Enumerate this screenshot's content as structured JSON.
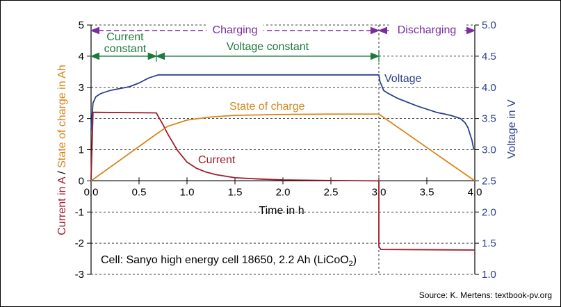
{
  "chart_data": {
    "type": "line",
    "xlabel": "Time in h",
    "ylabel_parts": [
      {
        "text": "Current in A",
        "color": "#a01c2b"
      },
      {
        "text": " / ",
        "color": "#000000"
      },
      {
        "text": "State of charge in Ah",
        "color": "#d6861a"
      }
    ],
    "y2label": "Voltage in V",
    "xlim": [
      0,
      4
    ],
    "ylim": [
      -3,
      5
    ],
    "y2lim": [
      1.0,
      5.0
    ],
    "x_ticks": [
      "0.0",
      "0.5",
      "1.0",
      "1.5",
      "2.0",
      "2.5",
      "3.0",
      "3.5",
      "4.0"
    ],
    "y_ticks": [
      "-3",
      "-2",
      "-1",
      "0",
      "1",
      "2",
      "3",
      "4",
      "5"
    ],
    "y2_ticks": [
      "1.0",
      "1.5",
      "2.0",
      "2.5",
      "3.0",
      "3.5",
      "4.0",
      "4.5",
      "5.0"
    ],
    "grid": "horizontal dashed",
    "colors": {
      "current": "#a01c2b",
      "soc": "#d6861a",
      "voltage": "#2b3f8f",
      "phase": "#7b2c9e",
      "mode": "#1e7a3c"
    },
    "series": [
      {
        "name": "Current",
        "axis": "left",
        "x": [
          0,
          0.02,
          0.68,
          0.75,
          0.8,
          0.9,
          1.0,
          1.1,
          1.2,
          1.3,
          1.5,
          1.75,
          2.0,
          2.5,
          2.99,
          3.0,
          3.0,
          3.02,
          4.0
        ],
        "y": [
          0.05,
          2.2,
          2.18,
          1.8,
          1.5,
          0.98,
          0.6,
          0.4,
          0.28,
          0.2,
          0.1,
          0.06,
          0.03,
          0.01,
          0.0,
          0.0,
          -2.1,
          -2.2,
          -2.22
        ]
      },
      {
        "name": "State of charge",
        "axis": "left",
        "x": [
          0,
          0.68,
          0.8,
          1.0,
          1.25,
          1.5,
          2.0,
          2.5,
          3.0,
          4.0
        ],
        "y": [
          0.0,
          1.5,
          1.75,
          1.95,
          2.05,
          2.1,
          2.13,
          2.14,
          2.14,
          0.0
        ]
      },
      {
        "name": "Voltage",
        "axis": "right",
        "x": [
          0.0,
          0.02,
          0.05,
          0.1,
          0.2,
          0.3,
          0.4,
          0.5,
          0.6,
          0.7,
          1.0,
          2.0,
          3.0,
          3.01,
          3.05,
          3.1,
          3.2,
          3.4,
          3.6,
          3.75,
          3.85,
          3.9,
          3.93,
          3.95,
          3.97,
          3.99
        ],
        "y": [
          3.31,
          3.75,
          3.85,
          3.9,
          3.95,
          3.98,
          4.01,
          4.07,
          4.15,
          4.2,
          4.2,
          4.2,
          4.2,
          4.1,
          3.95,
          3.9,
          3.82,
          3.7,
          3.6,
          3.55,
          3.5,
          3.43,
          3.35,
          3.25,
          3.15,
          3.0
        ]
      }
    ],
    "phases": [
      {
        "label": "Charging",
        "x": [
          0,
          3
        ]
      },
      {
        "label": "Discharging",
        "x": [
          3,
          4
        ]
      }
    ],
    "modes": [
      {
        "label_lines": [
          "Current",
          "constant"
        ],
        "x": [
          0,
          0.68
        ]
      },
      {
        "label_lines": [
          "Voltage constant"
        ],
        "x": [
          0.68,
          3
        ]
      }
    ],
    "annotations": {
      "voltage": "Voltage",
      "soc": "State of charge",
      "current": "Current",
      "cell_prefix": "Cell: Sanyo high energy cell 18650, 2.2 Ah (LiCoO",
      "cell_sub": "2",
      "cell_suffix": ")"
    },
    "source": "Source: K. Mertens: textbook-pv.org"
  }
}
